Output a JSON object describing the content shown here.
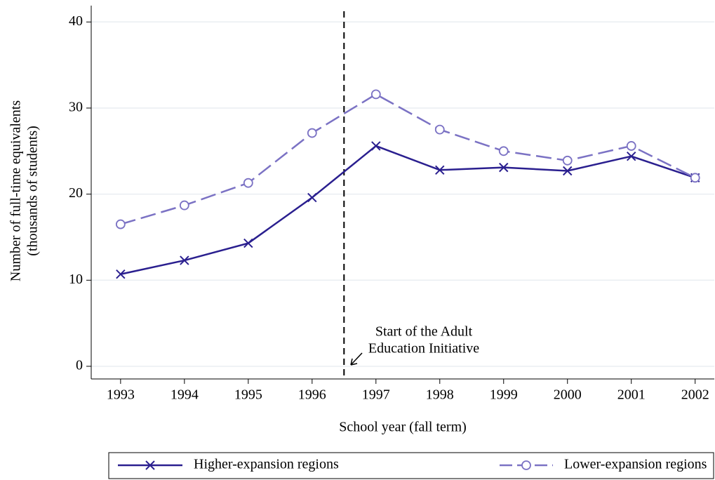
{
  "chart_data": {
    "type": "line",
    "x_label": "School year (fall term)",
    "y_label": [
      "Number of full-time equivalents",
      "(thousands of students)"
    ],
    "x": [
      1993,
      1994,
      1995,
      1996,
      1997,
      1998,
      1999,
      2000,
      2001,
      2002
    ],
    "series": [
      {
        "name": "Higher-expansion regions",
        "color": "#2a1f8f",
        "marker": "x",
        "dashed": false,
        "values": [
          10.7,
          12.3,
          14.3,
          19.6,
          25.6,
          22.8,
          23.1,
          22.7,
          24.4,
          21.9
        ]
      },
      {
        "name": "Lower-expansion regions",
        "color": "#7b72c4",
        "marker": "o",
        "dashed": true,
        "values": [
          16.5,
          18.7,
          21.3,
          27.1,
          31.6,
          27.5,
          25.0,
          23.9,
          25.6,
          21.9
        ]
      }
    ],
    "event_x": 1996.5,
    "annotation": [
      "Start of the Adult",
      "Education Initiative"
    ],
    "xlim": [
      1992.54,
      2002.3
    ],
    "xticks": [
      1993,
      1994,
      1995,
      1996,
      1997,
      1998,
      1999,
      2000,
      2001,
      2002
    ],
    "ylim": [
      -1.47,
      41.9
    ],
    "yticks": [
      0,
      10,
      20,
      30,
      40
    ],
    "grid": true,
    "legend": "bottom"
  }
}
